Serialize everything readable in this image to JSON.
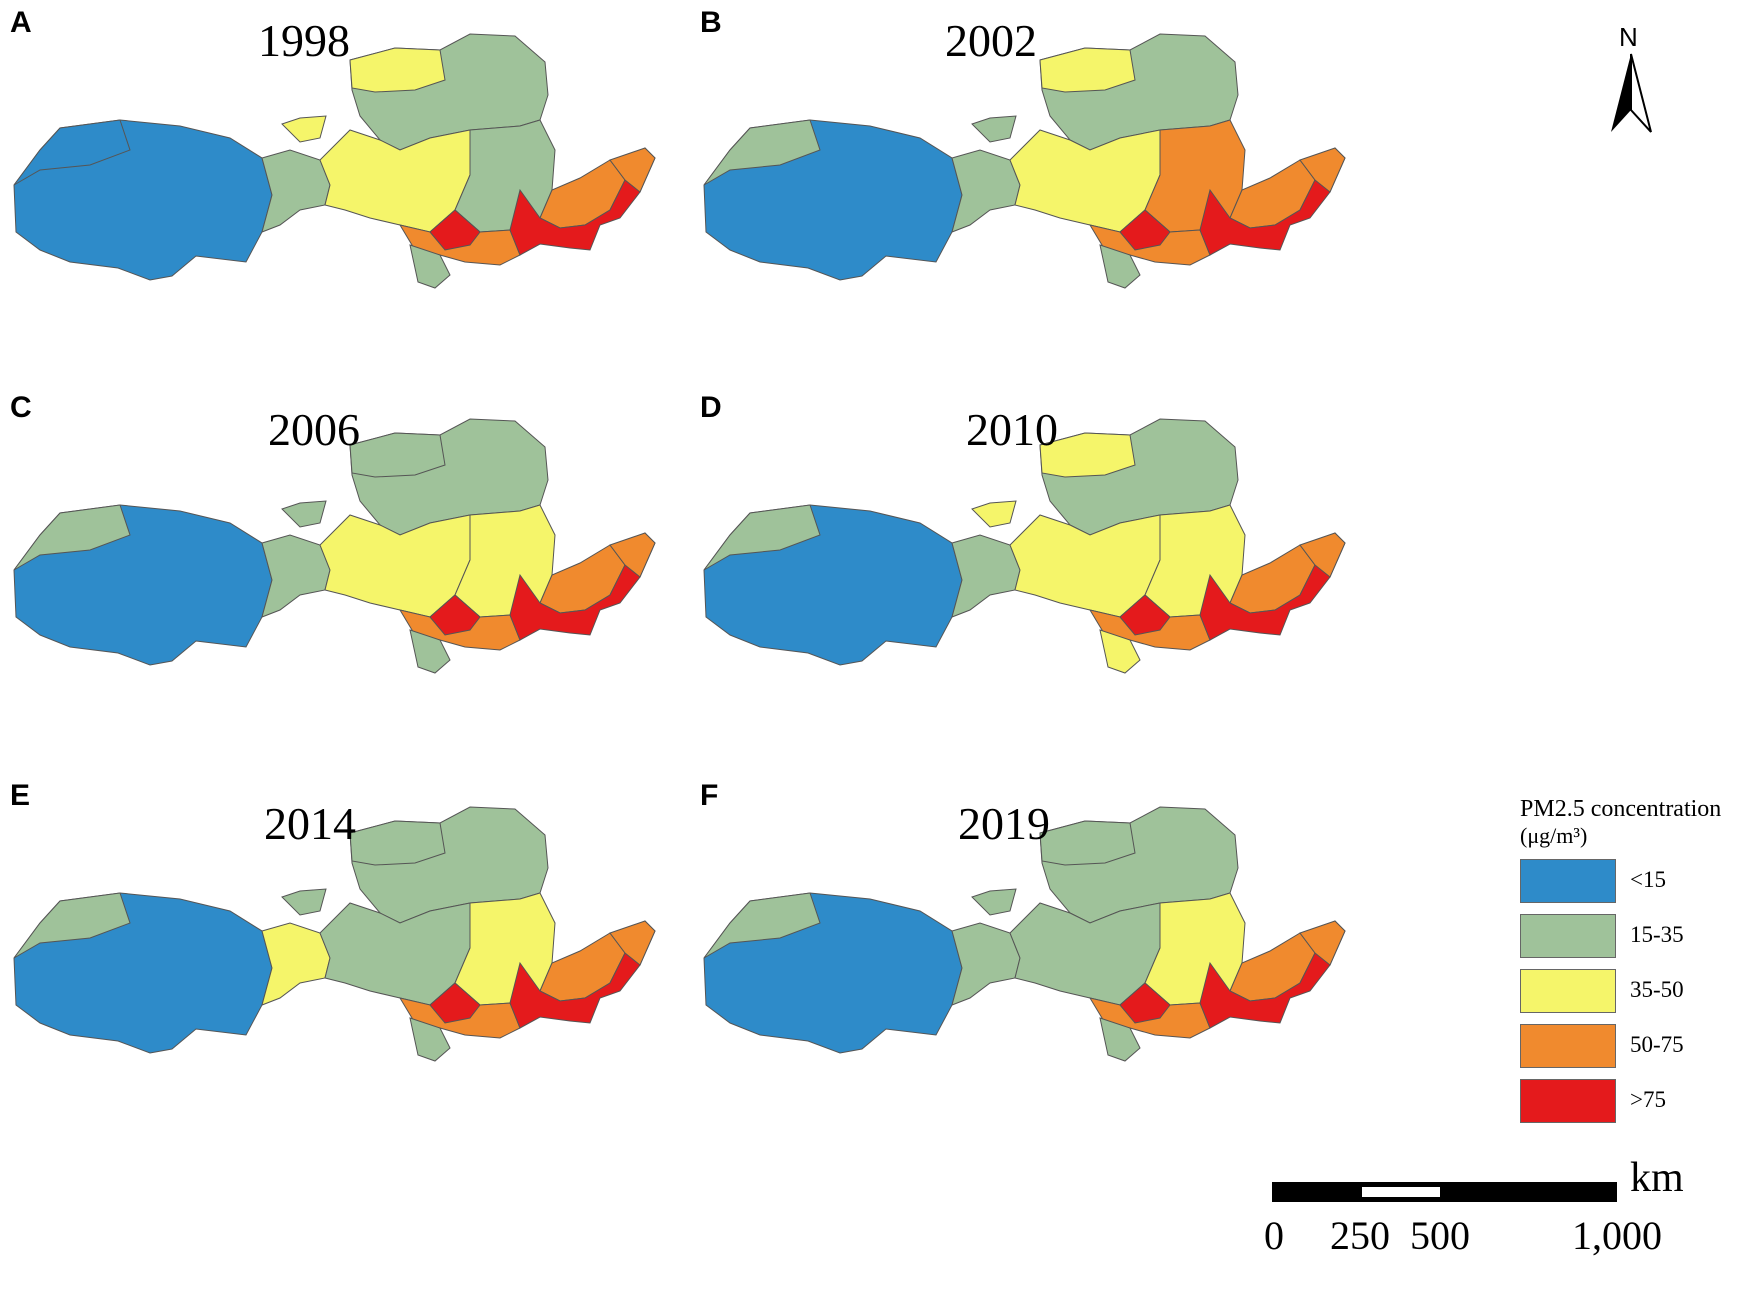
{
  "panels": [
    {
      "letter": "A",
      "year": "1998"
    },
    {
      "letter": "B",
      "year": "2002"
    },
    {
      "letter": "C",
      "year": "2006"
    },
    {
      "letter": "D",
      "year": "2010"
    },
    {
      "letter": "E",
      "year": "2014"
    },
    {
      "letter": "F",
      "year": "2019"
    }
  ],
  "north_arrow": {
    "label": "N"
  },
  "legend": {
    "title": "PM2.5 concentration",
    "unit": "(μg/m³)",
    "items": [
      {
        "label": "<15",
        "color": "#2e8bc9"
      },
      {
        "label": "15-35",
        "color": "#9fc29a"
      },
      {
        "label": "35-50",
        "color": "#f5f56a"
      },
      {
        "label": "50-75",
        "color": "#f08a2e"
      },
      {
        "label": ">75",
        "color": "#e41a1c"
      }
    ]
  },
  "scale_bar": {
    "unit": "km",
    "ticks": [
      "0",
      "250",
      "500",
      "1,000"
    ]
  }
}
